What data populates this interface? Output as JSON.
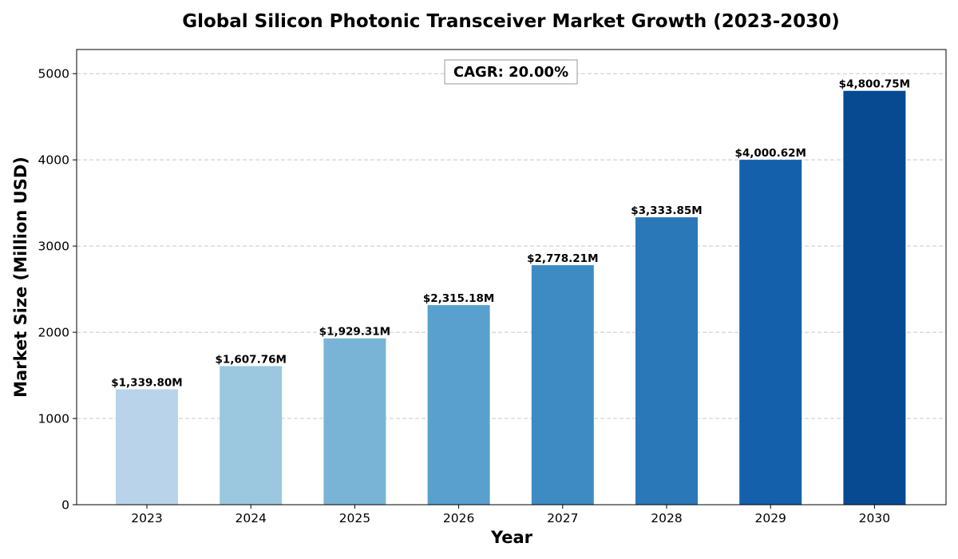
{
  "chart_data": {
    "type": "bar",
    "title": "Global Silicon Photonic Transceiver Market Growth (2023-2030)",
    "xlabel": "Year",
    "ylabel": "Market Size (Million USD)",
    "categories": [
      "2023",
      "2024",
      "2025",
      "2026",
      "2027",
      "2028",
      "2029",
      "2030"
    ],
    "values": [
      1339.8,
      1607.76,
      1929.31,
      2315.18,
      2778.21,
      3333.85,
      4000.62,
      4800.75
    ],
    "value_labels": [
      "$1,339.80M",
      "$1,607.76M",
      "$1,929.31M",
      "$2,315.18M",
      "$2,778.21M",
      "$3,333.85M",
      "$4,000.62M",
      "$4,800.75M"
    ],
    "colors": [
      "#b9d4ea",
      "#9bc7df",
      "#79b4d7",
      "#59a0ce",
      "#3e8bc3",
      "#2a78b8",
      "#1460aa",
      "#084a92"
    ],
    "ylim": [
      0,
      5280
    ],
    "yticks": [
      0,
      1000,
      2000,
      3000,
      4000,
      5000
    ],
    "grid": true,
    "annotation": "CAGR: 20.00%"
  }
}
